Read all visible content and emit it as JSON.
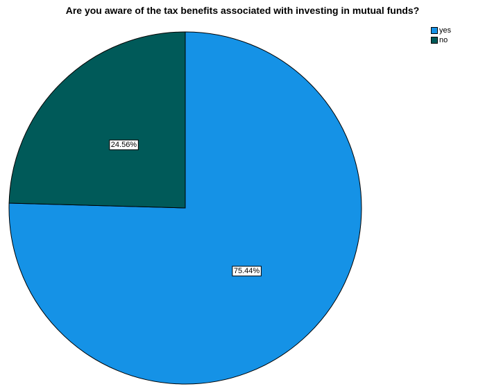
{
  "chart_data": {
    "type": "pie",
    "title": "Are you aware of the tax benefits associated with investing in mutual funds?",
    "slices": [
      {
        "label": "yes",
        "value": 75.44,
        "display": "75.44%",
        "color": "#1592e6"
      },
      {
        "label": "no",
        "value": 24.56,
        "display": "24.56%",
        "color": "#005a59"
      }
    ],
    "legend_position": "top-right",
    "start_angle": "12 o'clock",
    "direction": "clockwise"
  }
}
